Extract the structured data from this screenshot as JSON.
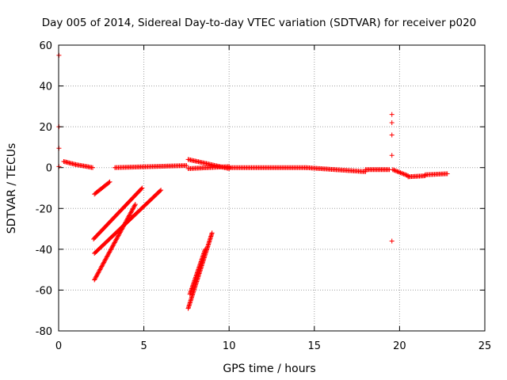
{
  "chart_data": {
    "type": "scatter",
    "title": "Day 005 of 2014, Sidereal Day-to-day VTEC variation (SDTVAR) for receiver p020",
    "xlabel": "GPS time / hours",
    "ylabel": "SDTVAR / TECUs",
    "xlim": [
      0,
      25
    ],
    "ylim": [
      -80,
      60
    ],
    "x_ticks": [
      0,
      5,
      10,
      15,
      20,
      25
    ],
    "y_ticks": [
      -80,
      -60,
      -40,
      -20,
      0,
      20,
      40,
      60
    ],
    "grid": true,
    "marker": "+",
    "color": "#ff0000",
    "points": [
      [
        0.02,
        55
      ],
      [
        0.02,
        20
      ],
      [
        0.02,
        9.5
      ],
      [
        0.02,
        0.5
      ],
      [
        19.55,
        26
      ],
      [
        19.55,
        22
      ],
      [
        19.55,
        16
      ],
      [
        19.55,
        6
      ],
      [
        19.55,
        -36
      ]
    ],
    "segments": [
      {
        "x0": 0.3,
        "y0": 3.0,
        "x1": 1.0,
        "y1": 1.5
      },
      {
        "x0": 1.0,
        "y0": 1.5,
        "x1": 2.0,
        "y1": 0.0
      },
      {
        "x0": 2.1,
        "y0": -13,
        "x1": 3.0,
        "y1": -7
      },
      {
        "x0": 2.05,
        "y0": -35,
        "x1": 4.9,
        "y1": -10
      },
      {
        "x0": 2.1,
        "y0": -42,
        "x1": 6.0,
        "y1": -11
      },
      {
        "x0": 2.1,
        "y0": -55,
        "x1": 4.5,
        "y1": -18
      },
      {
        "x0": 3.3,
        "y0": 0.0,
        "x1": 7.5,
        "y1": 1.0
      },
      {
        "x0": 7.6,
        "y0": -69,
        "x1": 9.0,
        "y1": -32
      },
      {
        "x0": 7.7,
        "y0": -62,
        "x1": 8.6,
        "y1": -40
      },
      {
        "x0": 7.6,
        "y0": 4.0,
        "x1": 10.0,
        "y1": -0.5
      },
      {
        "x0": 7.6,
        "y0": -0.5,
        "x1": 10.0,
        "y1": 0.5
      },
      {
        "x0": 10.0,
        "y0": 0.0,
        "x1": 14.5,
        "y1": 0.0
      },
      {
        "x0": 14.5,
        "y0": 0.0,
        "x1": 18.0,
        "y1": -2.0
      },
      {
        "x0": 18.0,
        "y0": -1.0,
        "x1": 19.4,
        "y1": -1.0
      },
      {
        "x0": 19.6,
        "y0": -1.0,
        "x1": 20.5,
        "y1": -4.0
      },
      {
        "x0": 20.5,
        "y0": -4.5,
        "x1": 21.5,
        "y1": -4.0
      },
      {
        "x0": 21.5,
        "y0": -3.5,
        "x1": 22.8,
        "y1": -3.0
      }
    ]
  }
}
